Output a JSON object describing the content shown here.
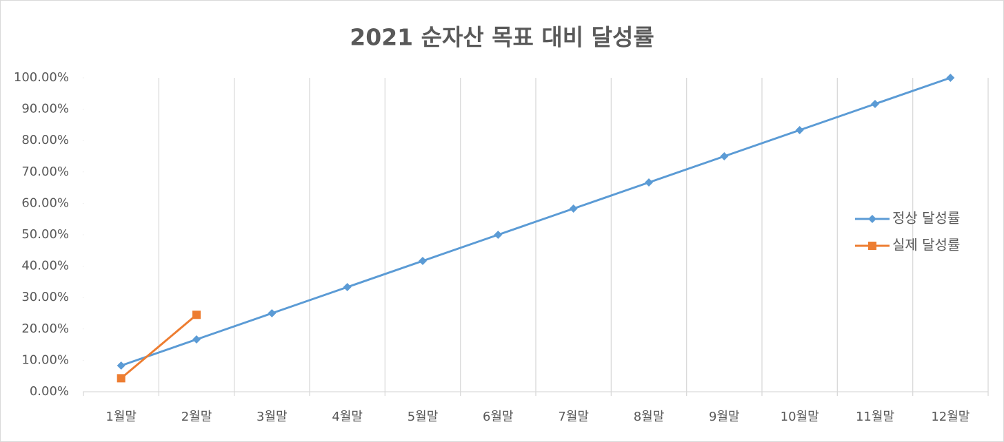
{
  "chart_data": {
    "type": "line",
    "title": "2021 순자산 목표 대비 달성률",
    "categories": [
      "1월말",
      "2월말",
      "3월말",
      "4월말",
      "5월말",
      "6월말",
      "7월말",
      "8월말",
      "9월말",
      "10월말",
      "11월말",
      "12월말"
    ],
    "series": [
      {
        "name": "정상 달성률",
        "color": "#5b9bd5",
        "marker": "diamond",
        "values": [
          8.33,
          16.67,
          25,
          33.33,
          41.67,
          50,
          58.33,
          66.67,
          75,
          83.33,
          91.67,
          100
        ]
      },
      {
        "name": "실제 달성률",
        "color": "#ed7d31",
        "marker": "square",
        "values": [
          4.3,
          24.5,
          null,
          null,
          null,
          null,
          null,
          null,
          null,
          null,
          null,
          null
        ]
      }
    ],
    "ylim": [
      0,
      100
    ],
    "yticks": [
      {
        "value": 0,
        "label": "0.00%"
      },
      {
        "value": 10,
        "label": "10.00%"
      },
      {
        "value": 20,
        "label": "20.00%"
      },
      {
        "value": 30,
        "label": "30.00%"
      },
      {
        "value": 40,
        "label": "40.00%"
      },
      {
        "value": 50,
        "label": "50.00%"
      },
      {
        "value": 60,
        "label": "60.00%"
      },
      {
        "value": 70,
        "label": "70.00%"
      },
      {
        "value": 80,
        "label": "80.00%"
      },
      {
        "value": 90,
        "label": "90.00%"
      },
      {
        "value": 100,
        "label": "100.00%"
      }
    ],
    "grid": true,
    "legend": "right"
  }
}
